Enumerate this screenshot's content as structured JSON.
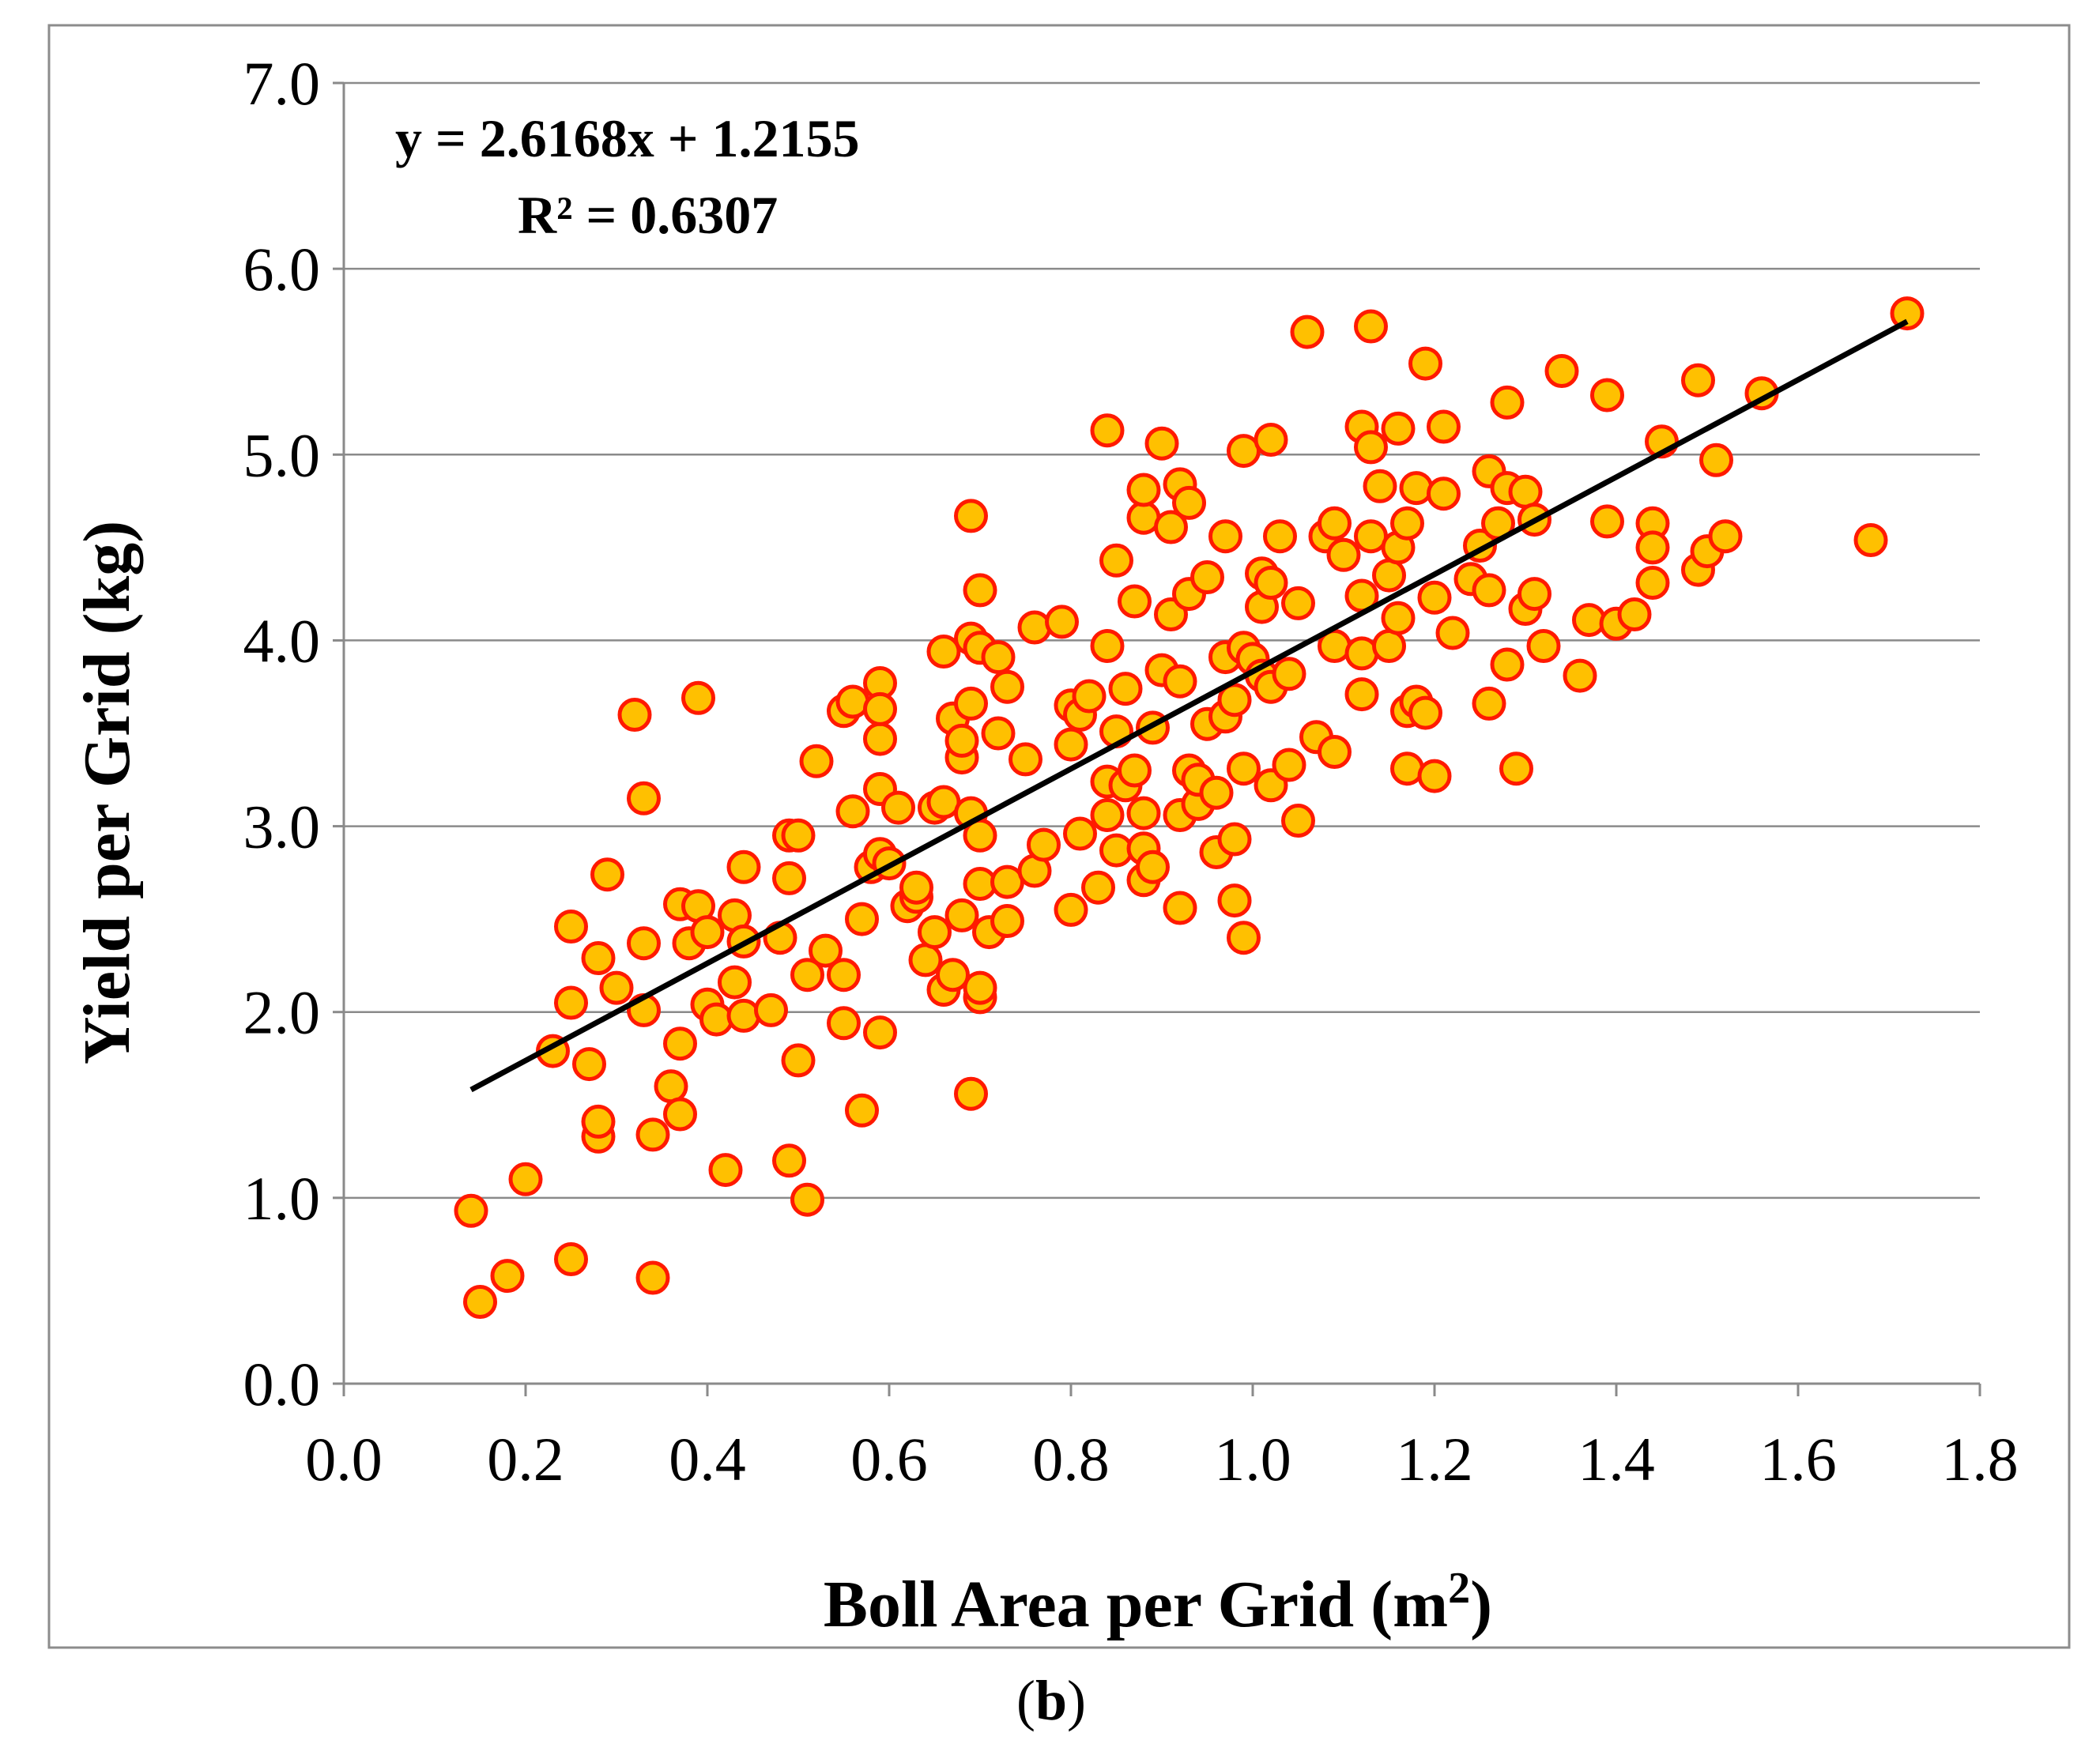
{
  "chart_data": {
    "type": "scatter",
    "title": "",
    "xlabel": "Boll Area per Grid (m",
    "xlabel_sup": "2",
    "xlabel_close": ")",
    "ylabel": "Yield per Grid (kg)",
    "xlim": [
      0.0,
      1.8
    ],
    "ylim": [
      0.0,
      7.0
    ],
    "x_ticks": [
      "0.0",
      "0.2",
      "0.4",
      "0.6",
      "0.8",
      "1.0",
      "1.2",
      "1.4",
      "1.6",
      "1.8"
    ],
    "y_ticks": [
      "0.0",
      "1.0",
      "2.0",
      "3.0",
      "4.0",
      "5.0",
      "6.0",
      "7.0"
    ],
    "grid": "horizontal",
    "point_fill": "#ffc000",
    "point_stroke": "#ff1a00",
    "trendline": {
      "equation": "y = 2.6168x + 1.2155",
      "r2_label": "R² = 0.6307",
      "slope": 2.6168,
      "intercept": 1.2155,
      "x_range": [
        0.14,
        1.72
      ],
      "color": "#000000"
    },
    "caption": "(b)",
    "caption_letter": "b",
    "points": [
      [
        0.14,
        0.93
      ],
      [
        0.15,
        0.44
      ],
      [
        0.18,
        0.58
      ],
      [
        0.2,
        1.1
      ],
      [
        0.23,
        1.79
      ],
      [
        0.25,
        2.46
      ],
      [
        0.25,
        2.05
      ],
      [
        0.25,
        0.67
      ],
      [
        0.27,
        1.72
      ],
      [
        0.28,
        1.33
      ],
      [
        0.28,
        2.29
      ],
      [
        0.28,
        1.41
      ],
      [
        0.29,
        2.74
      ],
      [
        0.3,
        2.13
      ],
      [
        0.32,
        3.6
      ],
      [
        0.33,
        3.15
      ],
      [
        0.33,
        2.37
      ],
      [
        0.33,
        2.01
      ],
      [
        0.34,
        1.34
      ],
      [
        0.34,
        0.57
      ],
      [
        0.36,
        1.6
      ],
      [
        0.37,
        1.83
      ],
      [
        0.37,
        2.58
      ],
      [
        0.37,
        1.45
      ],
      [
        0.38,
        2.37
      ],
      [
        0.39,
        3.69
      ],
      [
        0.39,
        2.57
      ],
      [
        0.4,
        2.04
      ],
      [
        0.4,
        2.43
      ],
      [
        0.41,
        1.96
      ],
      [
        0.42,
        1.15
      ],
      [
        0.43,
        2.52
      ],
      [
        0.43,
        2.16
      ],
      [
        0.44,
        1.98
      ],
      [
        0.44,
        2.38
      ],
      [
        0.44,
        2.78
      ],
      [
        0.47,
        2.01
      ],
      [
        0.48,
        2.4
      ],
      [
        0.49,
        2.72
      ],
      [
        0.49,
        2.95
      ],
      [
        0.49,
        1.2
      ],
      [
        0.5,
        2.95
      ],
      [
        0.5,
        1.74
      ],
      [
        0.51,
        2.2
      ],
      [
        0.51,
        0.99
      ],
      [
        0.52,
        3.35
      ],
      [
        0.53,
        2.33
      ],
      [
        0.55,
        2.2
      ],
      [
        0.55,
        1.94
      ],
      [
        0.55,
        3.62
      ],
      [
        0.56,
        3.08
      ],
      [
        0.56,
        3.67
      ],
      [
        0.57,
        2.5
      ],
      [
        0.57,
        1.47
      ],
      [
        0.58,
        2.78
      ],
      [
        0.59,
        1.89
      ],
      [
        0.59,
        2.85
      ],
      [
        0.59,
        3.77
      ],
      [
        0.59,
        3.47
      ],
      [
        0.59,
        3.2
      ],
      [
        0.59,
        3.63
      ],
      [
        0.6,
        2.8
      ],
      [
        0.61,
        3.1
      ],
      [
        0.62,
        2.57
      ],
      [
        0.63,
        2.62
      ],
      [
        0.63,
        2.67
      ],
      [
        0.64,
        2.28
      ],
      [
        0.65,
        3.1
      ],
      [
        0.65,
        2.43
      ],
      [
        0.66,
        3.94
      ],
      [
        0.66,
        2.12
      ],
      [
        0.66,
        3.13
      ],
      [
        0.67,
        2.2
      ],
      [
        0.67,
        3.58
      ],
      [
        0.68,
        2.52
      ],
      [
        0.68,
        3.37
      ],
      [
        0.68,
        3.46
      ],
      [
        0.69,
        3.66
      ],
      [
        0.69,
        4.67
      ],
      [
        0.69,
        3.07
      ],
      [
        0.69,
        1.56
      ],
      [
        0.69,
        4.01
      ],
      [
        0.7,
        3.96
      ],
      [
        0.7,
        2.69
      ],
      [
        0.7,
        2.95
      ],
      [
        0.7,
        2.08
      ],
      [
        0.7,
        2.13
      ],
      [
        0.7,
        4.27
      ],
      [
        0.71,
        2.43
      ],
      [
        0.72,
        3.91
      ],
      [
        0.72,
        3.5
      ],
      [
        0.73,
        3.75
      ],
      [
        0.73,
        2.49
      ],
      [
        0.73,
        2.7
      ],
      [
        0.75,
        3.36
      ],
      [
        0.76,
        4.07
      ],
      [
        0.76,
        2.76
      ],
      [
        0.77,
        2.9
      ],
      [
        0.79,
        4.1
      ],
      [
        0.8,
        3.44
      ],
      [
        0.8,
        3.65
      ],
      [
        0.8,
        2.55
      ],
      [
        0.81,
        3.6
      ],
      [
        0.81,
        2.96
      ],
      [
        0.82,
        3.7
      ],
      [
        0.83,
        2.67
      ],
      [
        0.84,
        3.97
      ],
      [
        0.84,
        3.24
      ],
      [
        0.84,
        3.06
      ],
      [
        0.84,
        5.13
      ],
      [
        0.85,
        2.87
      ],
      [
        0.85,
        3.51
      ],
      [
        0.85,
        4.43
      ],
      [
        0.86,
        3.22
      ],
      [
        0.86,
        3.74
      ],
      [
        0.87,
        3.3
      ],
      [
        0.87,
        4.21
      ],
      [
        0.88,
        3.07
      ],
      [
        0.88,
        2.88
      ],
      [
        0.88,
        2.71
      ],
      [
        0.88,
        4.66
      ],
      [
        0.88,
        4.81
      ],
      [
        0.89,
        3.53
      ],
      [
        0.89,
        2.78
      ],
      [
        0.9,
        3.84
      ],
      [
        0.9,
        5.06
      ],
      [
        0.91,
        4.61
      ],
      [
        0.91,
        4.14
      ],
      [
        0.92,
        3.78
      ],
      [
        0.92,
        3.06
      ],
      [
        0.92,
        2.56
      ],
      [
        0.92,
        4.84
      ],
      [
        0.93,
        3.3
      ],
      [
        0.93,
        4.25
      ],
      [
        0.93,
        4.74
      ],
      [
        0.94,
        3.12
      ],
      [
        0.94,
        3.25
      ],
      [
        0.95,
        3.55
      ],
      [
        0.95,
        4.34
      ],
      [
        0.96,
        2.86
      ],
      [
        0.96,
        3.18
      ],
      [
        0.97,
        3.91
      ],
      [
        0.97,
        3.59
      ],
      [
        0.97,
        4.56
      ],
      [
        0.98,
        2.6
      ],
      [
        0.98,
        2.93
      ],
      [
        0.98,
        3.68
      ],
      [
        0.99,
        2.4
      ],
      [
        0.99,
        3.96
      ],
      [
        0.99,
        5.02
      ],
      [
        0.99,
        3.31
      ],
      [
        1.0,
        3.9
      ],
      [
        1.01,
        4.18
      ],
      [
        1.01,
        4.36
      ],
      [
        1.01,
        3.81
      ],
      [
        1.02,
        4.31
      ],
      [
        1.02,
        3.75
      ],
      [
        1.02,
        3.22
      ],
      [
        1.02,
        5.08
      ],
      [
        1.03,
        4.56
      ],
      [
        1.04,
        3.33
      ],
      [
        1.04,
        3.82
      ],
      [
        1.05,
        3.03
      ],
      [
        1.05,
        4.2
      ],
      [
        1.06,
        5.66
      ],
      [
        1.07,
        3.48
      ],
      [
        1.08,
        4.56
      ],
      [
        1.09,
        3.97
      ],
      [
        1.09,
        3.4
      ],
      [
        1.09,
        4.63
      ],
      [
        1.1,
        4.46
      ],
      [
        1.12,
        3.93
      ],
      [
        1.12,
        4.24
      ],
      [
        1.12,
        3.71
      ],
      [
        1.12,
        5.15
      ],
      [
        1.13,
        4.56
      ],
      [
        1.13,
        5.69
      ],
      [
        1.13,
        5.04
      ],
      [
        1.14,
        4.83
      ],
      [
        1.15,
        3.97
      ],
      [
        1.15,
        4.35
      ],
      [
        1.16,
        4.12
      ],
      [
        1.16,
        4.5
      ],
      [
        1.16,
        5.14
      ],
      [
        1.17,
        3.31
      ],
      [
        1.17,
        4.63
      ],
      [
        1.17,
        3.62
      ],
      [
        1.18,
        4.82
      ],
      [
        1.18,
        3.67
      ],
      [
        1.19,
        5.49
      ],
      [
        1.19,
        3.61
      ],
      [
        1.2,
        3.27
      ],
      [
        1.2,
        4.23
      ],
      [
        1.21,
        4.79
      ],
      [
        1.21,
        5.15
      ],
      [
        1.22,
        4.04
      ],
      [
        1.24,
        4.33
      ],
      [
        1.25,
        4.51
      ],
      [
        1.26,
        4.91
      ],
      [
        1.26,
        4.27
      ],
      [
        1.26,
        3.66
      ],
      [
        1.27,
        4.63
      ],
      [
        1.28,
        4.82
      ],
      [
        1.28,
        3.87
      ],
      [
        1.28,
        5.28
      ],
      [
        1.29,
        3.31
      ],
      [
        1.3,
        4.17
      ],
      [
        1.3,
        4.8
      ],
      [
        1.31,
        4.25
      ],
      [
        1.31,
        4.65
      ],
      [
        1.32,
        3.97
      ],
      [
        1.34,
        5.45
      ],
      [
        1.36,
        3.81
      ],
      [
        1.37,
        4.11
      ],
      [
        1.39,
        4.64
      ],
      [
        1.39,
        5.32
      ],
      [
        1.4,
        4.09
      ],
      [
        1.42,
        4.14
      ],
      [
        1.44,
        4.31
      ],
      [
        1.44,
        4.63
      ],
      [
        1.44,
        4.5
      ],
      [
        1.45,
        5.07
      ],
      [
        1.49,
        5.4
      ],
      [
        1.49,
        4.38
      ],
      [
        1.5,
        4.48
      ],
      [
        1.51,
        4.97
      ],
      [
        1.52,
        4.56
      ],
      [
        1.56,
        5.33
      ],
      [
        1.68,
        4.54
      ],
      [
        1.72,
        5.76
      ]
    ]
  }
}
